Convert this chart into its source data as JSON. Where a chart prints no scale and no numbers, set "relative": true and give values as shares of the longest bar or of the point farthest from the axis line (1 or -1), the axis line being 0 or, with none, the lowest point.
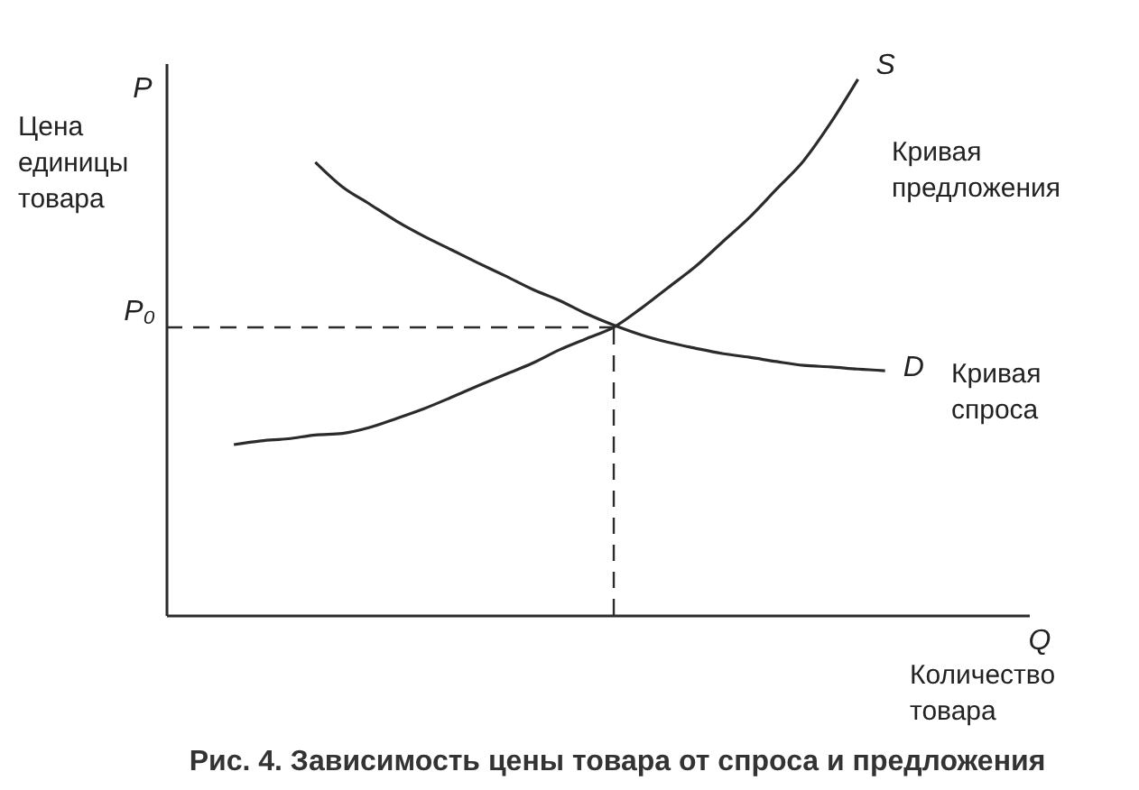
{
  "chart_data": {
    "type": "line",
    "relative": true,
    "title": "Рис. 4. Зависимость цены товара от спроса и предложения",
    "xlabel": "Q",
    "ylabel": "P",
    "categories": [
      null,
      null,
      null,
      null,
      null,
      null,
      null,
      null,
      null,
      null,
      null,
      null,
      null,
      null,
      null,
      null,
      null,
      null,
      null,
      null,
      null,
      null,
      null,
      null,
      null
    ],
    "series": [
      {
        "name": "S",
        "color": "#2b2b2b",
        "values": [
          0.318,
          0.325,
          0.329,
          0.336,
          0.339,
          0.35,
          0.367,
          0.385,
          0.406,
          0.428,
          0.449,
          0.47,
          0.495,
          0.516,
          0.537,
          0.572,
          0.611,
          0.65,
          0.696,
          0.742,
          0.795,
          0.848,
          0.919,
          1,
          null
        ]
      },
      {
        "name": "D",
        "color": "#2b2b2b",
        "values": [
          null,
          null,
          null,
          0.845,
          0.799,
          0.767,
          0.735,
          0.707,
          0.682,
          0.657,
          0.633,
          0.608,
          0.587,
          0.562,
          0.541,
          0.523,
          0.509,
          0.498,
          0.488,
          0.481,
          0.473,
          0.466,
          0.463,
          0.459,
          0.456
        ]
      }
    ],
    "ref_lines": [
      {
        "axis": "y",
        "value": 0.537,
        "label": "P₀",
        "line_style": "dashed",
        "color": "#2b2b2b"
      }
    ],
    "annotations": [
      "Цена единицы товара",
      "Кривая предложения",
      "Кривая спроса",
      "Количество товара"
    ]
  }
}
